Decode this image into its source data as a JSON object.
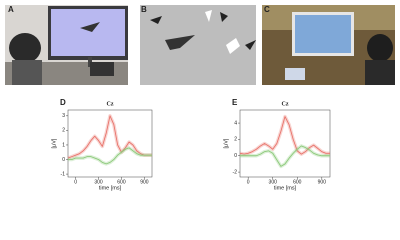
{
  "panels": [
    {
      "label": "A"
    },
    {
      "label": "B"
    },
    {
      "label": "C"
    }
  ],
  "chart_data": [
    {
      "type": "line",
      "panel_label": "D",
      "title": "Cz",
      "x_label": "time [ms]",
      "y_label": "[μV]",
      "x": [
        -100,
        -50,
        0,
        50,
        100,
        150,
        200,
        250,
        300,
        350,
        400,
        450,
        500,
        550,
        600,
        650,
        700,
        750,
        800,
        850,
        900,
        950,
        1000
      ],
      "xlim": [
        -100,
        1000
      ],
      "xticks": [
        0,
        300,
        600,
        900
      ],
      "ylim": [
        -1.2,
        3.4
      ],
      "yticks": [
        -1,
        0,
        1,
        2,
        3
      ],
      "series": [
        {
          "color": "#e8736b",
          "values": [
            0.1,
            0.2,
            0.3,
            0.4,
            0.6,
            0.9,
            1.3,
            1.6,
            1.3,
            0.9,
            1.8,
            3.0,
            2.4,
            1.0,
            0.5,
            0.8,
            1.2,
            1.0,
            0.6,
            0.4,
            0.3,
            0.3,
            0.3
          ]
        },
        {
          "color": "#8cc97a",
          "values": [
            0.0,
            0.0,
            0.1,
            0.1,
            0.1,
            0.2,
            0.2,
            0.1,
            0.0,
            -0.2,
            -0.3,
            -0.2,
            0.0,
            0.3,
            0.5,
            0.7,
            0.8,
            0.6,
            0.4,
            0.3,
            0.3,
            0.3,
            0.3
          ]
        }
      ]
    },
    {
      "type": "line",
      "panel_label": "E",
      "title": "Cz",
      "x_label": "time [ms]",
      "y_label": "[μV]",
      "x": [
        -100,
        -50,
        0,
        50,
        100,
        150,
        200,
        250,
        300,
        350,
        400,
        450,
        500,
        550,
        600,
        650,
        700,
        750,
        800,
        850,
        900,
        950,
        1000
      ],
      "xlim": [
        -100,
        1000
      ],
      "xticks": [
        0,
        300,
        600,
        900
      ],
      "ylim": [
        -2.6,
        5.6
      ],
      "yticks": [
        -2,
        0,
        2,
        4
      ],
      "series": [
        {
          "color": "#e8736b",
          "values": [
            0.3,
            0.2,
            0.3,
            0.5,
            0.8,
            1.2,
            1.5,
            1.2,
            0.8,
            1.5,
            3.0,
            4.8,
            3.8,
            2.0,
            0.6,
            0.2,
            0.5,
            1.0,
            1.3,
            0.9,
            0.5,
            0.3,
            0.3
          ]
        },
        {
          "color": "#8cc97a",
          "values": [
            0,
            0,
            0,
            0,
            0,
            0.2,
            0.5,
            0.6,
            0.3,
            -0.5,
            -1.3,
            -1.0,
            -0.3,
            0.3,
            0.8,
            1.2,
            1.0,
            0.7,
            0.3,
            0.1,
            0,
            0,
            0
          ]
        }
      ]
    }
  ]
}
